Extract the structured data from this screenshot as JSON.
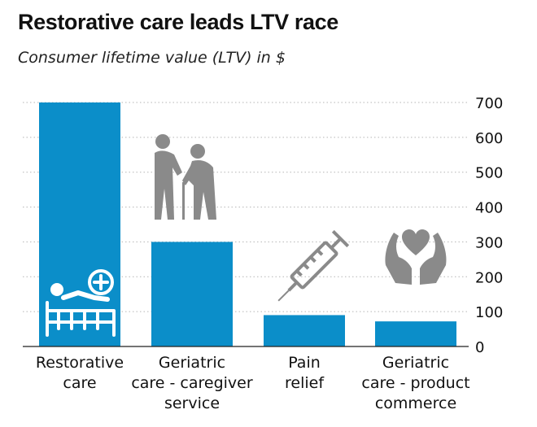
{
  "header": {
    "title": "Restorative care leads LTV race",
    "subtitle": "Consumer lifetime value (LTV) in $"
  },
  "colors": {
    "bar": "#0b8ec9",
    "grid": "#b5b5b5",
    "icon": "#8a8a8a",
    "icon_light": "#ffffff"
  },
  "chart_data": {
    "type": "bar",
    "title": "Restorative care leads LTV race",
    "subtitle": "Consumer lifetime value (LTV) in $",
    "categories": [
      "Restorative\ncare",
      "Geriatric\ncare - caregiver\nservice",
      "Pain\nrelief",
      "Geriatric\ncare - product\ncommerce"
    ],
    "values": [
      700,
      300,
      90,
      72
    ],
    "ylim": [
      0,
      700
    ],
    "yticks": [
      0,
      100,
      200,
      300,
      400,
      500,
      600,
      700
    ],
    "y_axis_side": "right",
    "grid": true,
    "icons": [
      "hospital-bed-icon",
      "elderly-couple-icon",
      "syringe-icon",
      "caring-hands-heart-icon"
    ]
  }
}
